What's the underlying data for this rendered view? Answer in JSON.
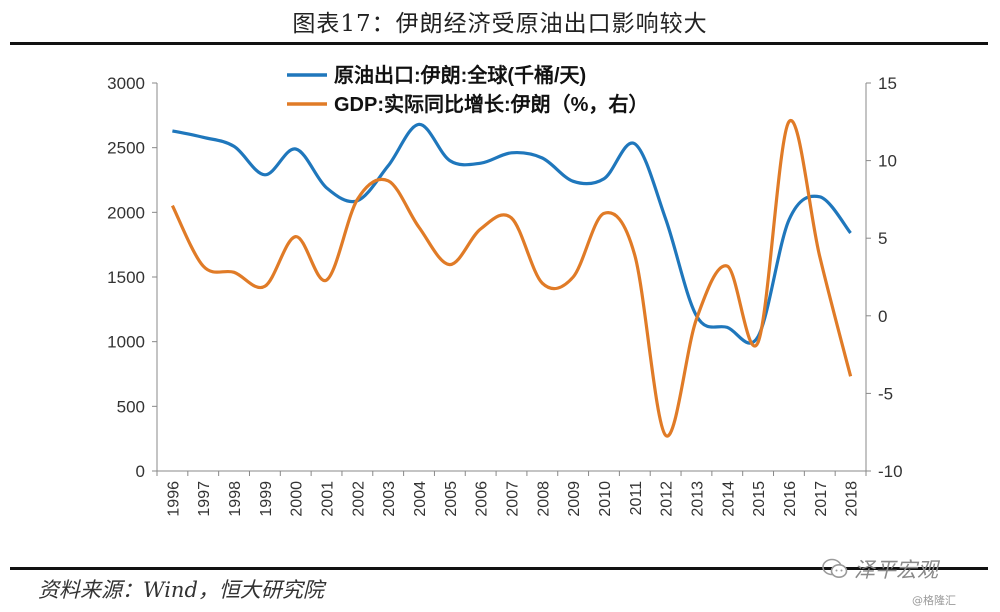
{
  "header": {
    "title": "图表17：伊朗经济受原油出口影响较大"
  },
  "footer": {
    "source": "资料来源：Wind，恒大研究院",
    "brand": "泽平宏观",
    "credit": "@格隆汇"
  },
  "colors": {
    "series_oil": "#1F77BC",
    "series_gdp": "#E07B27",
    "axis": "#888888"
  },
  "icons": {
    "brand": "wechat-bubble-icon"
  },
  "chart_data": {
    "type": "line",
    "title": "",
    "x": [
      "1996",
      "1997",
      "1998",
      "1999",
      "2000",
      "2001",
      "2002",
      "2003",
      "2004",
      "2005",
      "2006",
      "2007",
      "2008",
      "2009",
      "2010",
      "2011",
      "2012",
      "2013",
      "2014",
      "2015",
      "2016",
      "2017",
      "2018"
    ],
    "series": [
      {
        "name": "原油出口:伊朗:全球(千桶/天)",
        "axis": "left",
        "values": [
          2630,
          2580,
          2510,
          2290,
          2490,
          2190,
          2090,
          2360,
          2680,
          2400,
          2380,
          2460,
          2420,
          2240,
          2260,
          2530,
          1950,
          1200,
          1110,
          1040,
          1940,
          2120,
          1840
        ]
      },
      {
        "name": "GDP:实际同比增长:伊朗（%，右）",
        "axis": "right",
        "values": [
          7.1,
          3.2,
          2.8,
          1.9,
          5.1,
          2.3,
          7.5,
          8.7,
          5.7,
          3.3,
          5.6,
          6.3,
          2.1,
          2.5,
          6.6,
          3.9,
          -7.7,
          -0.2,
          3.2,
          -1.7,
          12.5,
          3.8,
          -3.9
        ]
      }
    ],
    "y_left": {
      "ylim": [
        0,
        3000
      ],
      "ticks": [
        "0",
        "500",
        "1000",
        "1500",
        "2000",
        "2500",
        "3000"
      ]
    },
    "y_right": {
      "ylim": [
        -10,
        15
      ],
      "ticks": [
        "-10",
        "-5",
        "0",
        "5",
        "10",
        "15"
      ]
    },
    "legend_placement": "top-center",
    "grid": false
  }
}
